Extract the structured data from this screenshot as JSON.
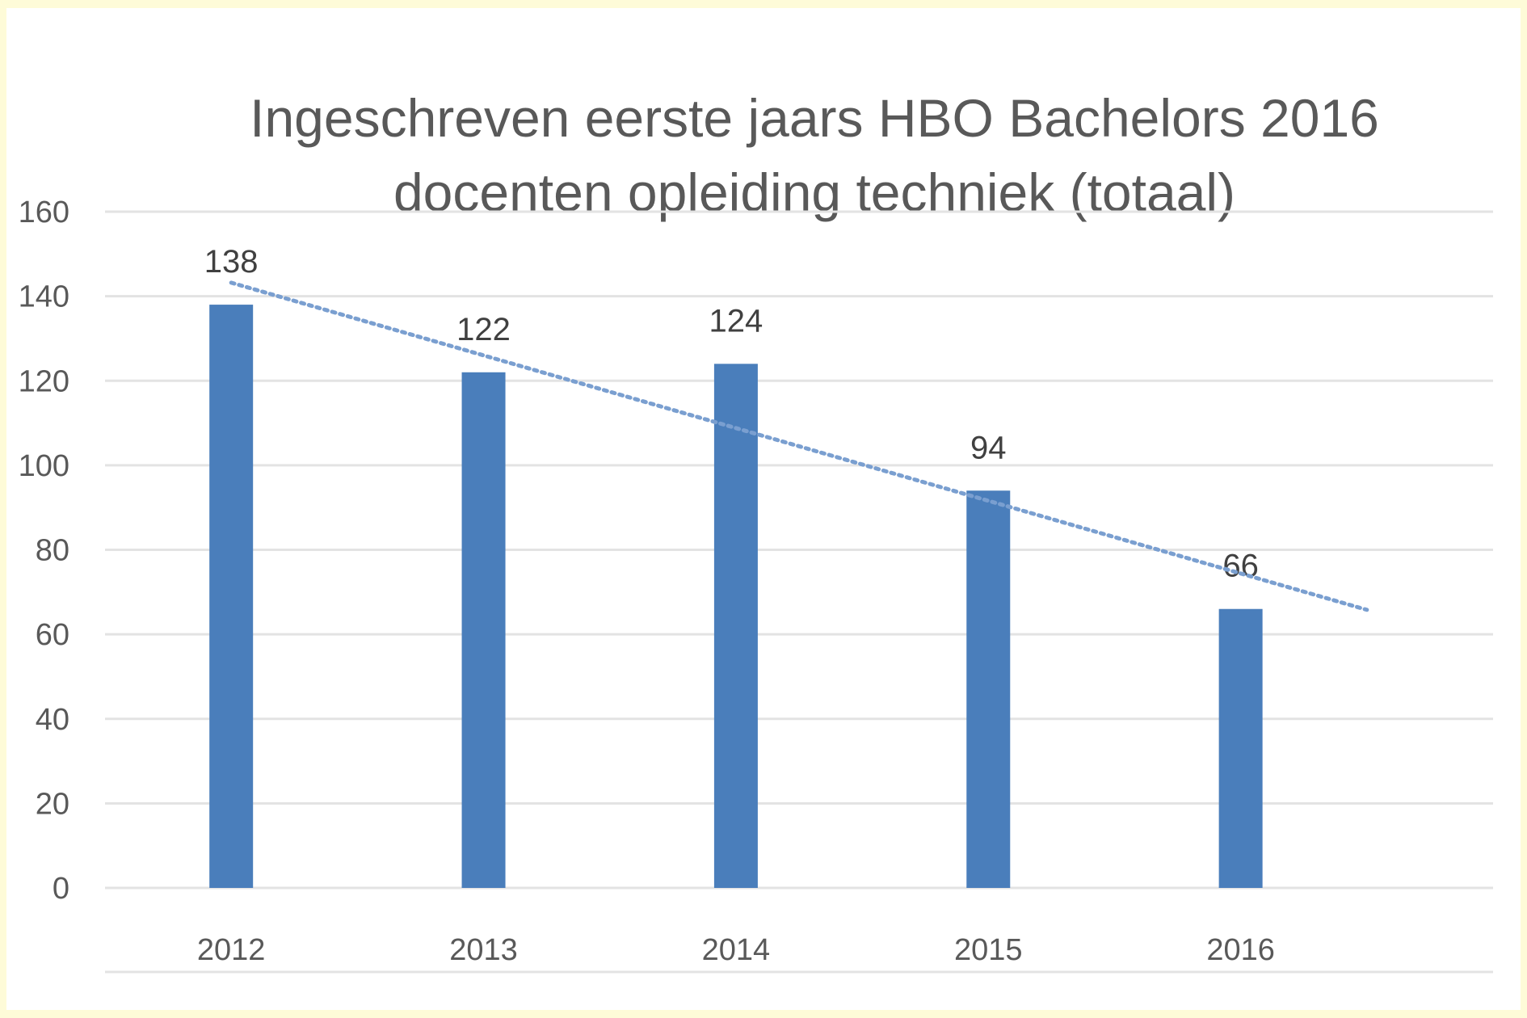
{
  "chart_data": {
    "type": "bar",
    "title_line1": "Ingeschreven eerste jaars HBO Bachelors 2016",
    "title_line2": "docenten opleiding techniek (totaal)",
    "categories": [
      "2012",
      "2013",
      "2014",
      "2015",
      "2016"
    ],
    "values": [
      138,
      122,
      124,
      94,
      66
    ],
    "data_labels": [
      "138",
      "122",
      "124",
      "94",
      "66"
    ],
    "ylim": [
      0,
      160
    ],
    "yticks": [
      0,
      20,
      40,
      60,
      80,
      100,
      120,
      140,
      160
    ],
    "xlabel": "",
    "ylabel": "",
    "grid": true,
    "legend": "none",
    "trendline": {
      "type": "linear",
      "style": "dotted",
      "extends_periods_forward": 0.5
    },
    "colors": {
      "bar": "#4a7ebb",
      "trend": "#7a9fd0",
      "grid": "#e3e3e3",
      "text": "#595959"
    }
  }
}
